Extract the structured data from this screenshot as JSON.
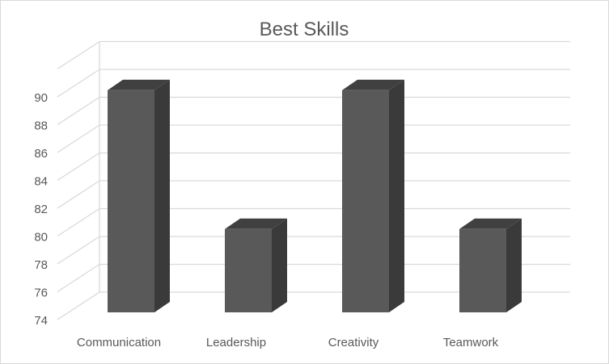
{
  "chart_data": {
    "type": "bar",
    "title": "Best Skills",
    "categories": [
      "Communication",
      "Leadership",
      "Creativity",
      "Teamwork"
    ],
    "values": [
      90,
      80,
      90,
      80
    ],
    "ylim": [
      74,
      90
    ],
    "yticks": [
      74,
      76,
      78,
      80,
      82,
      84,
      86,
      88,
      90
    ],
    "xlabel": "",
    "ylabel": "",
    "grid": true,
    "legend": "none",
    "style": "3d-column",
    "colors": {
      "bar_front": "#595959",
      "bar_side": "#3a3a3a",
      "bar_top": "#404040",
      "grid": "#d9d9d9",
      "text": "#595959"
    }
  }
}
